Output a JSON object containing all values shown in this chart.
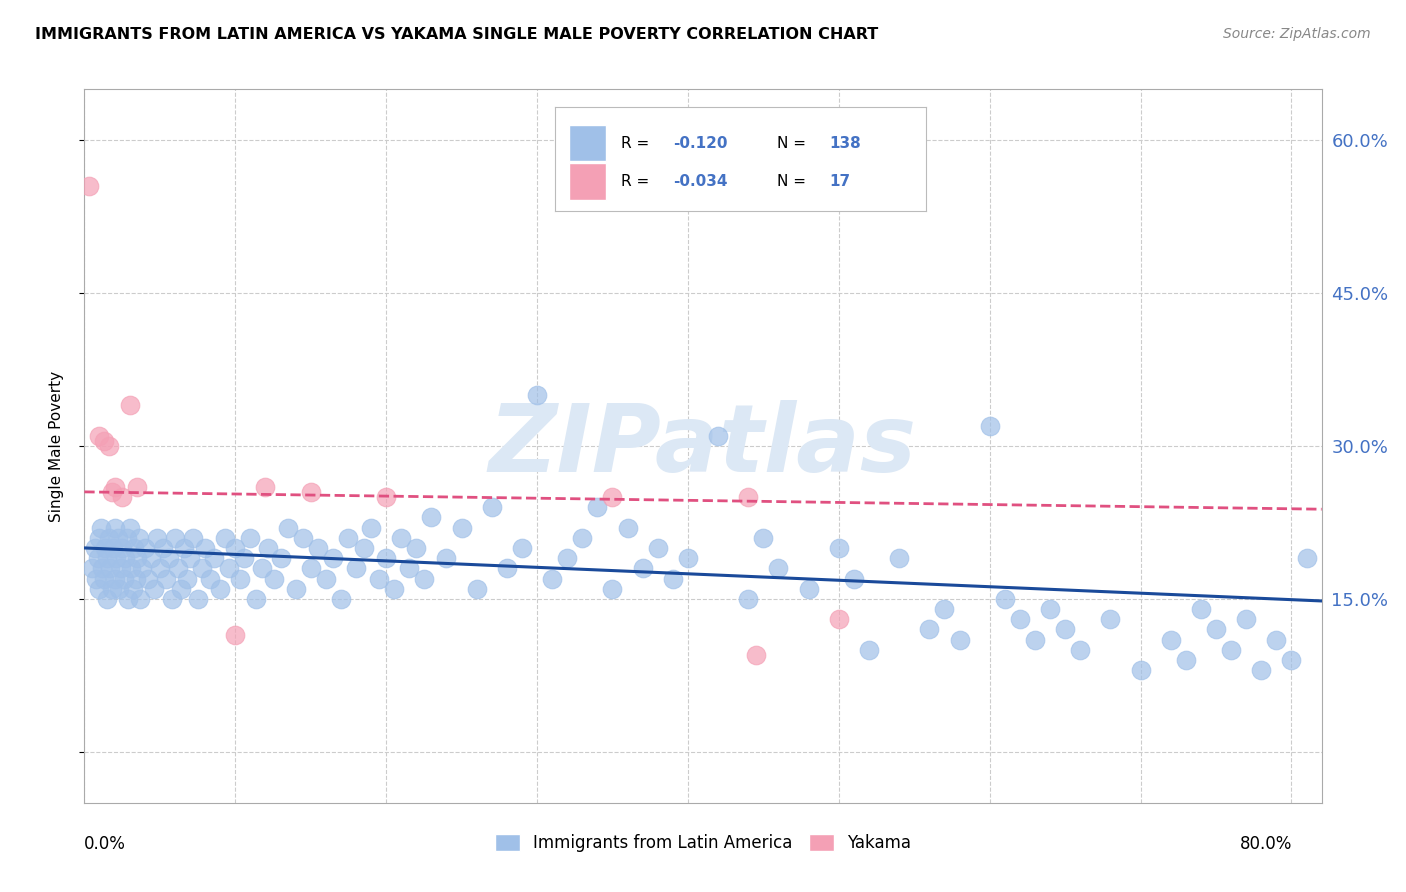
{
  "title": "IMMIGRANTS FROM LATIN AMERICA VS YAKAMA SINGLE MALE POVERTY CORRELATION CHART",
  "source": "Source: ZipAtlas.com",
  "ylabel": "Single Male Poverty",
  "yticks": [
    0.0,
    0.15,
    0.3,
    0.45,
    0.6
  ],
  "ytick_labels": [
    "",
    "15.0%",
    "30.0%",
    "45.0%",
    "60.0%"
  ],
  "xlim": [
    0.0,
    0.82
  ],
  "ylim": [
    -0.05,
    0.65
  ],
  "blue_color": "#a0c0e8",
  "pink_color": "#f4a0b5",
  "blue_line_color": "#1a4a9a",
  "pink_line_color": "#e05080",
  "watermark_text": "ZIPatlas",
  "watermark_color": "#dce8f5",
  "legend1": "Immigrants from Latin America",
  "legend2": "Yakama",
  "blue_scatter_x": [
    0.005,
    0.007,
    0.008,
    0.009,
    0.01,
    0.01,
    0.011,
    0.012,
    0.013,
    0.014,
    0.015,
    0.015,
    0.016,
    0.017,
    0.018,
    0.019,
    0.02,
    0.02,
    0.021,
    0.022,
    0.023,
    0.024,
    0.025,
    0.026,
    0.027,
    0.028,
    0.029,
    0.03,
    0.031,
    0.032,
    0.033,
    0.034,
    0.035,
    0.036,
    0.037,
    0.038,
    0.04,
    0.042,
    0.044,
    0.046,
    0.048,
    0.05,
    0.052,
    0.054,
    0.056,
    0.058,
    0.06,
    0.062,
    0.064,
    0.066,
    0.068,
    0.07,
    0.072,
    0.075,
    0.078,
    0.08,
    0.083,
    0.086,
    0.09,
    0.093,
    0.096,
    0.1,
    0.103,
    0.106,
    0.11,
    0.114,
    0.118,
    0.122,
    0.126,
    0.13,
    0.135,
    0.14,
    0.145,
    0.15,
    0.155,
    0.16,
    0.165,
    0.17,
    0.175,
    0.18,
    0.185,
    0.19,
    0.195,
    0.2,
    0.205,
    0.21,
    0.215,
    0.22,
    0.225,
    0.23,
    0.24,
    0.25,
    0.26,
    0.27,
    0.28,
    0.29,
    0.3,
    0.31,
    0.32,
    0.33,
    0.34,
    0.35,
    0.36,
    0.37,
    0.38,
    0.39,
    0.4,
    0.42,
    0.44,
    0.45,
    0.46,
    0.48,
    0.5,
    0.51,
    0.52,
    0.54,
    0.56,
    0.57,
    0.58,
    0.6,
    0.61,
    0.62,
    0.63,
    0.64,
    0.65,
    0.66,
    0.68,
    0.7,
    0.72,
    0.73,
    0.74,
    0.75,
    0.76,
    0.77,
    0.78,
    0.79,
    0.8,
    0.81
  ],
  "blue_scatter_y": [
    0.18,
    0.2,
    0.17,
    0.19,
    0.21,
    0.16,
    0.22,
    0.18,
    0.17,
    0.2,
    0.19,
    0.15,
    0.21,
    0.18,
    0.16,
    0.2,
    0.22,
    0.17,
    0.19,
    0.21,
    0.16,
    0.18,
    0.2,
    0.17,
    0.19,
    0.21,
    0.15,
    0.22,
    0.18,
    0.16,
    0.2,
    0.17,
    0.19,
    0.21,
    0.15,
    0.18,
    0.2,
    0.17,
    0.19,
    0.16,
    0.21,
    0.18,
    0.2,
    0.17,
    0.19,
    0.15,
    0.21,
    0.18,
    0.16,
    0.2,
    0.17,
    0.19,
    0.21,
    0.15,
    0.18,
    0.2,
    0.17,
    0.19,
    0.16,
    0.21,
    0.18,
    0.2,
    0.17,
    0.19,
    0.21,
    0.15,
    0.18,
    0.2,
    0.17,
    0.19,
    0.22,
    0.16,
    0.21,
    0.18,
    0.2,
    0.17,
    0.19,
    0.15,
    0.21,
    0.18,
    0.2,
    0.22,
    0.17,
    0.19,
    0.16,
    0.21,
    0.18,
    0.2,
    0.17,
    0.23,
    0.19,
    0.22,
    0.16,
    0.24,
    0.18,
    0.2,
    0.35,
    0.17,
    0.19,
    0.21,
    0.24,
    0.16,
    0.22,
    0.18,
    0.2,
    0.17,
    0.19,
    0.31,
    0.15,
    0.21,
    0.18,
    0.16,
    0.2,
    0.17,
    0.1,
    0.19,
    0.12,
    0.14,
    0.11,
    0.32,
    0.15,
    0.13,
    0.11,
    0.14,
    0.12,
    0.1,
    0.13,
    0.08,
    0.11,
    0.09,
    0.14,
    0.12,
    0.1,
    0.13,
    0.08,
    0.11,
    0.09,
    0.19
  ],
  "pink_scatter_x": [
    0.003,
    0.01,
    0.013,
    0.016,
    0.018,
    0.02,
    0.025,
    0.03,
    0.035,
    0.1,
    0.12,
    0.15,
    0.2,
    0.35,
    0.44,
    0.445,
    0.5
  ],
  "pink_scatter_y": [
    0.555,
    0.31,
    0.305,
    0.3,
    0.255,
    0.26,
    0.25,
    0.34,
    0.26,
    0.115,
    0.26,
    0.255,
    0.25,
    0.25,
    0.25,
    0.095,
    0.13
  ],
  "blue_trend_x0": 0.0,
  "blue_trend_x1": 0.82,
  "blue_trend_y0": 0.2,
  "blue_trend_y1": 0.148,
  "pink_trend_x0": 0.0,
  "pink_trend_x1": 0.82,
  "pink_trend_y0": 0.255,
  "pink_trend_y1": 0.238,
  "legend_R_blue": "-0.120",
  "legend_N_blue": "138",
  "legend_R_pink": "-0.034",
  "legend_N_pink": "17"
}
